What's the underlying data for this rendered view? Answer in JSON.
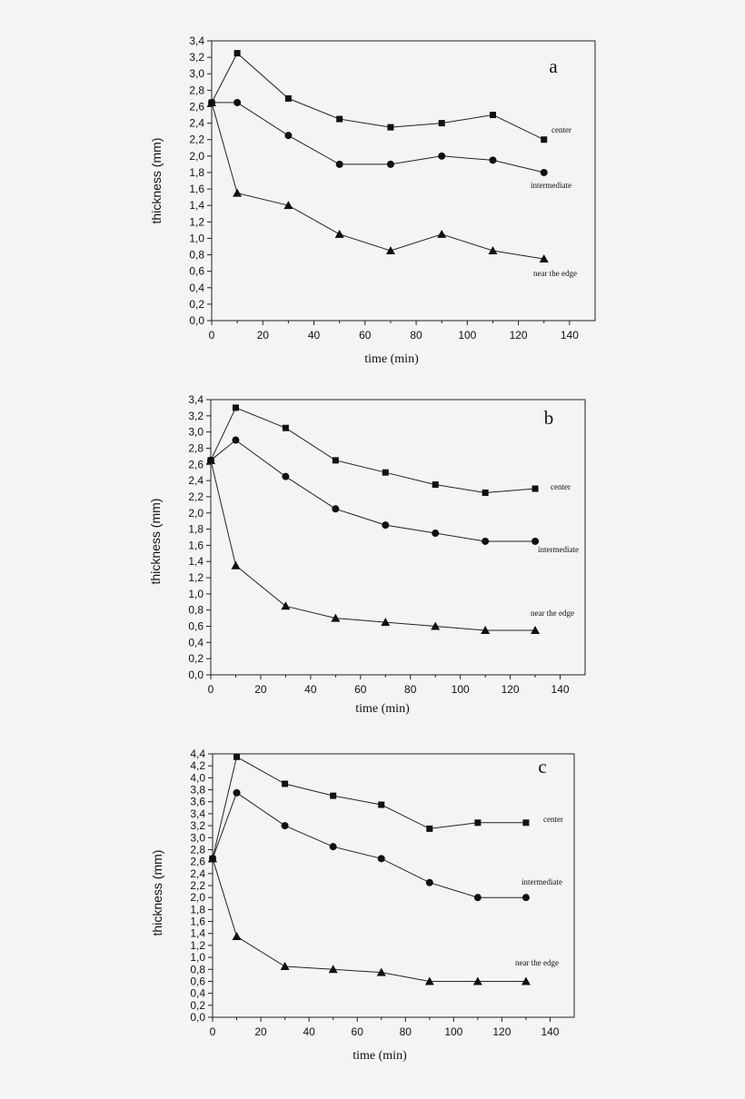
{
  "chart_data": [
    {
      "type": "line",
      "panel_label": "a",
      "xlabel": "time (min)",
      "ylabel": "thickness (mm)",
      "xlim": [
        0,
        150
      ],
      "ylim": [
        0,
        3.4
      ],
      "x_ticks": [
        "0",
        "20",
        "40",
        "60",
        "80",
        "100",
        "120",
        "140"
      ],
      "y_ticks": [
        "0,0",
        "0,2",
        "0,4",
        "0,6",
        "0,8",
        "1,0",
        "1,2",
        "1,4",
        "1,6",
        "1,8",
        "2,0",
        "2,2",
        "2,4",
        "2,6",
        "2,8",
        "3,0",
        "3,2",
        "3,4"
      ],
      "grid": false,
      "series": [
        {
          "name": "center",
          "marker": "square",
          "x": [
            0,
            10,
            30,
            50,
            70,
            90,
            110,
            130
          ],
          "y": [
            2.65,
            3.25,
            2.7,
            2.45,
            2.35,
            2.4,
            2.5,
            2.2
          ]
        },
        {
          "name": "intermediate",
          "marker": "circle",
          "x": [
            0,
            10,
            30,
            50,
            70,
            90,
            110,
            130
          ],
          "y": [
            2.65,
            2.65,
            2.25,
            1.9,
            1.9,
            2.0,
            1.95,
            1.8
          ]
        },
        {
          "name": "near the edge",
          "marker": "triangle",
          "x": [
            0,
            10,
            30,
            50,
            70,
            90,
            110,
            130
          ],
          "y": [
            2.65,
            1.55,
            1.4,
            1.05,
            0.85,
            1.05,
            0.85,
            0.75
          ]
        }
      ]
    },
    {
      "type": "line",
      "panel_label": "b",
      "xlabel": "time (min)",
      "ylabel": "thickness (mm)",
      "xlim": [
        0,
        150
      ],
      "ylim": [
        0,
        3.4
      ],
      "x_ticks": [
        "0",
        "20",
        "40",
        "60",
        "80",
        "100",
        "120",
        "140"
      ],
      "y_ticks": [
        "0,0",
        "0,2",
        "0,4",
        "0,6",
        "0,8",
        "1,0",
        "1,2",
        "1,4",
        "1,6",
        "1,8",
        "2,0",
        "2,2",
        "2,4",
        "2,6",
        "2,8",
        "3,0",
        "3,2",
        "3,4"
      ],
      "grid": false,
      "series": [
        {
          "name": "center",
          "marker": "square",
          "x": [
            0,
            10,
            30,
            50,
            70,
            90,
            110,
            130
          ],
          "y": [
            2.65,
            3.3,
            3.05,
            2.65,
            2.5,
            2.35,
            2.25,
            2.3
          ]
        },
        {
          "name": "intermediate",
          "marker": "circle",
          "x": [
            0,
            10,
            30,
            50,
            70,
            90,
            110,
            130
          ],
          "y": [
            2.65,
            2.9,
            2.45,
            2.05,
            1.85,
            1.75,
            1.65,
            1.65
          ]
        },
        {
          "name": "near the edge",
          "marker": "triangle",
          "x": [
            0,
            10,
            30,
            50,
            70,
            90,
            110,
            130
          ],
          "y": [
            2.65,
            1.35,
            0.85,
            0.7,
            0.65,
            0.6,
            0.55,
            0.55
          ]
        }
      ]
    },
    {
      "type": "line",
      "panel_label": "c",
      "xlabel": "time (min)",
      "ylabel": "thickness (mm)",
      "xlim": [
        0,
        150
      ],
      "ylim": [
        0,
        4.4
      ],
      "x_ticks": [
        "0",
        "20",
        "40",
        "60",
        "80",
        "100",
        "120",
        "140"
      ],
      "y_ticks": [
        "0,0",
        "0,2",
        "0,4",
        "0,6",
        "0,8",
        "1,0",
        "1,2",
        "1,4",
        "1,6",
        "1,8",
        "2,0",
        "2,2",
        "2,4",
        "2,6",
        "2,8",
        "3,0",
        "3,2",
        "3,4",
        "3,6",
        "3,8",
        "4,0",
        "4,2",
        "4,4"
      ],
      "grid": false,
      "series": [
        {
          "name": "center",
          "marker": "square",
          "x": [
            0,
            10,
            30,
            50,
            70,
            90,
            110,
            130
          ],
          "y": [
            2.65,
            4.35,
            3.9,
            3.7,
            3.55,
            3.15,
            3.25,
            3.25
          ]
        },
        {
          "name": "intermediate",
          "marker": "circle",
          "x": [
            0,
            10,
            30,
            50,
            70,
            90,
            110,
            130
          ],
          "y": [
            2.65,
            3.75,
            3.2,
            2.85,
            2.65,
            2.25,
            2.0,
            2.0
          ]
        },
        {
          "name": "near the edge",
          "marker": "triangle",
          "x": [
            0,
            10,
            30,
            50,
            70,
            90,
            110,
            130
          ],
          "y": [
            2.65,
            1.35,
            0.85,
            0.8,
            0.75,
            0.6,
            0.6,
            0.6
          ]
        }
      ]
    }
  ]
}
